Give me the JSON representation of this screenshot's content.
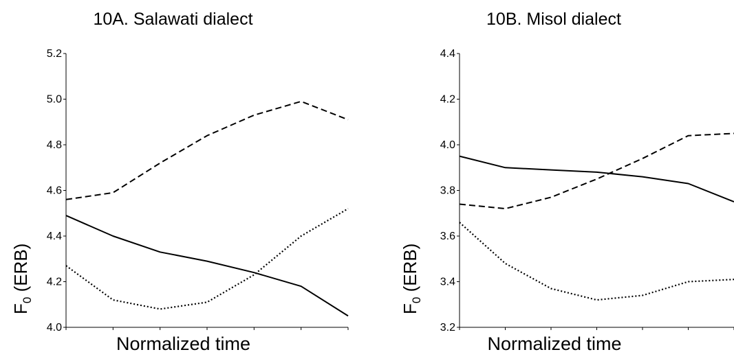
{
  "chart_data": [
    {
      "type": "line",
      "title": "10A. Salawati dialect",
      "xlabel": "Normalized time",
      "ylabel_main": "F",
      "ylabel_sub": "0",
      "ylabel_rest": " (ERB)",
      "ylim": [
        4.0,
        5.2
      ],
      "yticks": [
        "4.0",
        "4.2",
        "4.4",
        "4.6",
        "4.8",
        "5.0",
        "5.2"
      ],
      "x": [
        1,
        2,
        3,
        4,
        5,
        6,
        7
      ],
      "series": [
        {
          "style": "dashed",
          "values": [
            4.56,
            4.59,
            4.72,
            4.84,
            4.93,
            4.99,
            4.91
          ]
        },
        {
          "style": "solid",
          "values": [
            4.49,
            4.4,
            4.33,
            4.29,
            4.24,
            4.18,
            4.05
          ]
        },
        {
          "style": "dotted",
          "values": [
            4.27,
            4.12,
            4.08,
            4.11,
            4.23,
            4.4,
            4.52
          ]
        }
      ]
    },
    {
      "type": "line",
      "title": "10B. Misol dialect",
      "xlabel": "Normalized time",
      "ylabel_main": "F",
      "ylabel_sub": "0",
      "ylabel_rest": " (ERB)",
      "ylim": [
        3.2,
        4.4
      ],
      "yticks": [
        "3.2",
        "3.4",
        "3.6",
        "3.8",
        "4.0",
        "4.2",
        "4.4"
      ],
      "x": [
        1,
        2,
        3,
        4,
        5,
        6,
        7
      ],
      "series": [
        {
          "style": "solid",
          "values": [
            3.95,
            3.9,
            3.89,
            3.88,
            3.86,
            3.83,
            3.75
          ]
        },
        {
          "style": "dashed",
          "values": [
            3.74,
            3.72,
            3.77,
            3.85,
            3.94,
            4.04,
            4.05
          ]
        },
        {
          "style": "dotted",
          "values": [
            3.66,
            3.48,
            3.37,
            3.32,
            3.34,
            3.4,
            3.41
          ]
        }
      ]
    }
  ]
}
